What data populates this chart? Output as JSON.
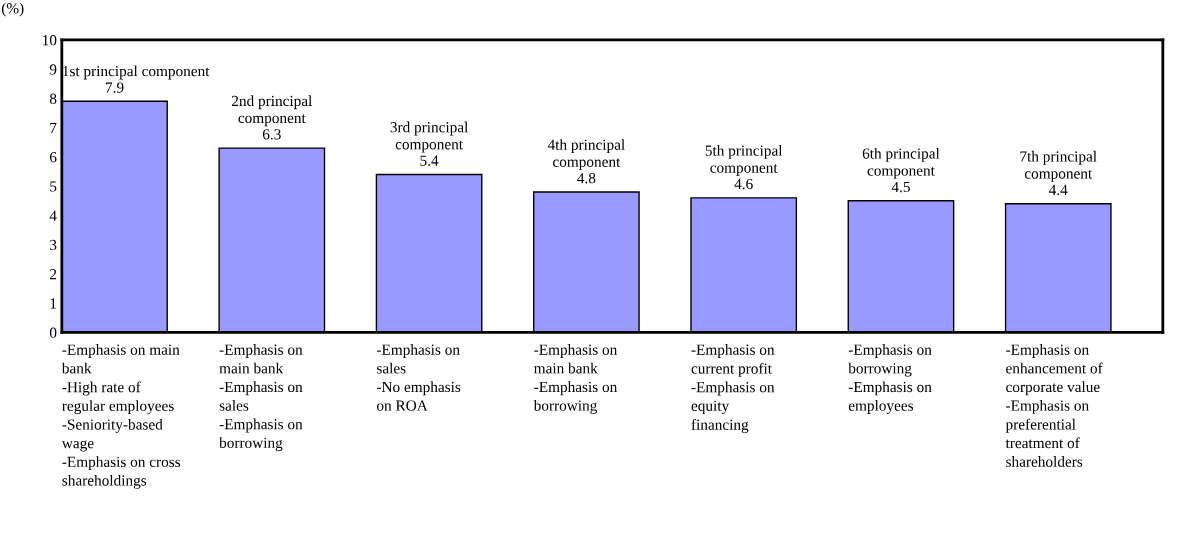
{
  "chart_data": {
    "type": "bar",
    "ylabel": "(%)",
    "categories": [
      "-Emphasis on main\nbank\n-High rate of\nregular employees\n-Seniority-based\nwage\n-Emphasis on cross\nshareholdings",
      "-Emphasis on\nmain bank\n-Emphasis on\nsales\n-Emphasis on\nborrowing",
      "-Emphasis on\nsales\n-No emphasis\non ROA",
      "-Emphasis on\nmain bank\n-Emphasis on\nborrowing",
      "-Emphasis on\ncurrent profit\n-Emphasis on\nequity\nfinancing",
      "-Emphasis on\nborrowing\n-Emphasis on\nemployees",
      "-Emphasis on\nenhancement of\ncorporate value\n-Emphasis on\npreferential\ntreatment of\nshareholders"
    ],
    "values": [
      7.9,
      6.3,
      5.4,
      4.8,
      4.6,
      4.5,
      4.4
    ],
    "color": "#9999ff",
    "data_labels": true,
    "annotations": [
      "1st principal component",
      "2nd principal\ncomponent",
      "3rd principal\ncomponent",
      "4th principal\ncomponent",
      "5th principal\ncomponent",
      "6th principal\ncomponent",
      "7th principal\ncomponent"
    ],
    "ylim": [
      0,
      10
    ],
    "yticks": [
      0,
      1,
      2,
      3,
      4,
      5,
      6,
      7,
      8,
      9,
      10
    ],
    "grid": false,
    "legend": false
  }
}
